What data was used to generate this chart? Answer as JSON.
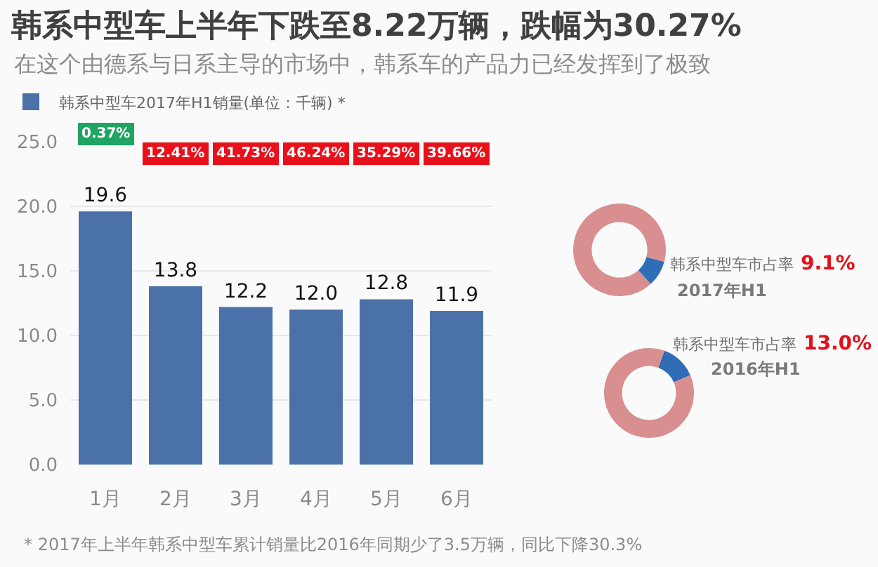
{
  "chart_data": [
    {
      "type": "bar",
      "title": "韩系中型车上半年下跌至8.22万辆，跌幅为30.27%",
      "subtitle": "在这个由德系与日系主导的市场中，韩系车的产品力已经发挥到了极致",
      "categories": [
        "1月",
        "2月",
        "3月",
        "4月",
        "5月",
        "6月"
      ],
      "series": [
        {
          "name": "韩系中型车2017年H1销量(单位：千辆) *",
          "color": "#4a72a8",
          "values": [
            19.6,
            13.8,
            12.2,
            12.0,
            12.8,
            11.9
          ],
          "value_labels": [
            "19.6",
            "13.8",
            "12.2",
            "12.0",
            "12.8",
            "11.9"
          ]
        }
      ],
      "ylim": [
        0,
        25
      ],
      "yticks": [
        {
          "value": 0,
          "label": "0.0"
        },
        {
          "value": 5,
          "label": "5.0"
        },
        {
          "value": 10,
          "label": "10.0"
        },
        {
          "value": 15,
          "label": "15.0"
        },
        {
          "value": 20,
          "label": "20.0"
        },
        {
          "value": 25,
          "label": "25.0"
        }
      ],
      "grid": "y",
      "legend": "top left",
      "annotations": [
        "0.37%",
        "12.41%",
        "41.73%",
        "46.24%",
        "35.29%",
        "39.66%",
        "* 2017年上半年韩系中型车累计销量比2016年同期少了3.5万辆，同比下降30.3%"
      ]
    },
    {
      "type": "donut",
      "title": "2017年H1",
      "categories": [
        "韩系中型车市占率",
        null
      ],
      "values": [
        9.1,
        90.9
      ],
      "colors": [
        "#2f6db6",
        "#d98f8f"
      ],
      "value_labels": [
        "9.1%",
        null
      ]
    },
    {
      "type": "donut",
      "title": "2016年H1",
      "categories": [
        "韩系中型车市占率",
        null
      ],
      "values": [
        13.0,
        87.0
      ],
      "colors": [
        "#2f6db6",
        "#d98f8f"
      ],
      "value_labels": [
        "13.0%",
        null
      ]
    }
  ]
}
